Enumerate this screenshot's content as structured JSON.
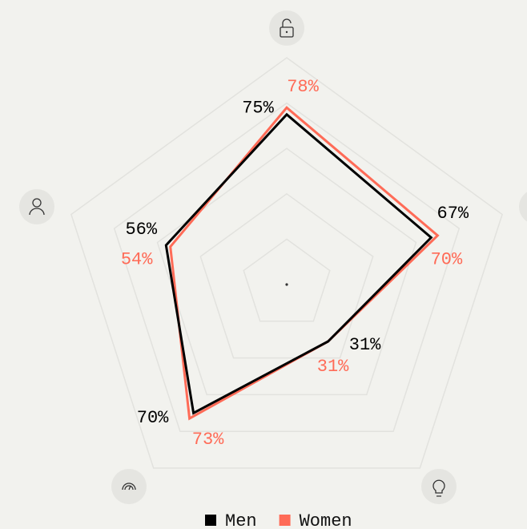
{
  "chart_data": {
    "type": "radar",
    "rlim": [
      0,
      100
    ],
    "rticks": [
      20,
      40,
      60,
      80,
      100
    ],
    "series": [
      {
        "name": "Men",
        "color": "#000000",
        "values": [
          75,
          67,
          31,
          70,
          56
        ],
        "value_labels": [
          "75%",
          "67%",
          "31%",
          "70%",
          "56%"
        ]
      },
      {
        "name": "Women",
        "color": "#ff6b57",
        "values": [
          78,
          70,
          31,
          73,
          54
        ],
        "value_labels": [
          "78%",
          "70%",
          "31%",
          "73%",
          "54%"
        ]
      }
    ]
  }
}
